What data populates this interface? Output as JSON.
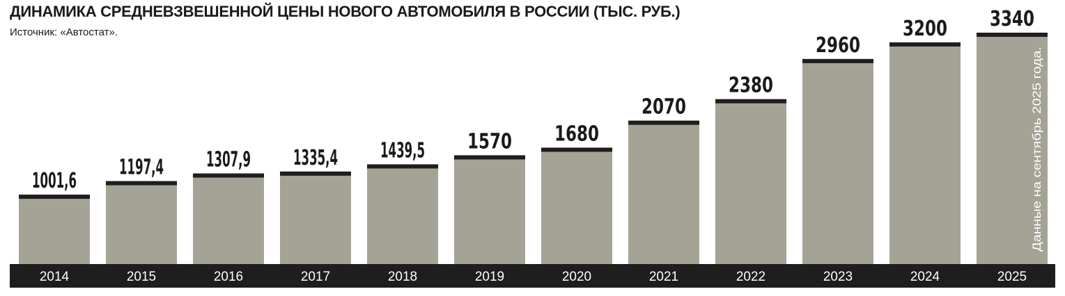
{
  "header": {
    "title": "ДИНАМИКА СРЕДНЕВЗВЕШЕННОЙ ЦЕНЫ НОВОГО АВТОМОБИЛЯ В РОССИИ (ТЫС. РУБ.)",
    "source": "Источник: «Автостат»."
  },
  "chart_data": {
    "type": "bar",
    "title": "ДИНАМИКА СРЕДНЕВЗВЕШЕННОЙ ЦЕНЫ НОВОГО АВТОМОБИЛЯ В РОССИИ (ТЫС. РУБ.)",
    "categories": [
      "2014",
      "2015",
      "2016",
      "2017",
      "2018",
      "2019",
      "2020",
      "2021",
      "2022",
      "2023",
      "2024",
      "2025"
    ],
    "values": [
      1001.6,
      1197.4,
      1307.9,
      1335.4,
      1439.5,
      1570,
      1680,
      2070,
      2380,
      2960,
      3200,
      3340
    ],
    "value_labels": [
      "1001,6",
      "1197,4",
      "1307,9",
      "1335,4",
      "1439,5",
      "1570",
      "1680",
      "2070",
      "2380",
      "2960",
      "3200",
      "3340"
    ],
    "ylim": [
      0,
      3340
    ],
    "grid": false,
    "note": "Данные на сентябрь 2025 года.",
    "colors": {
      "bar": "#a5a395",
      "bar_cap": "#1e1e1e",
      "axis_band": "#1e1e1e",
      "axis_text": "#ffffff"
    }
  }
}
